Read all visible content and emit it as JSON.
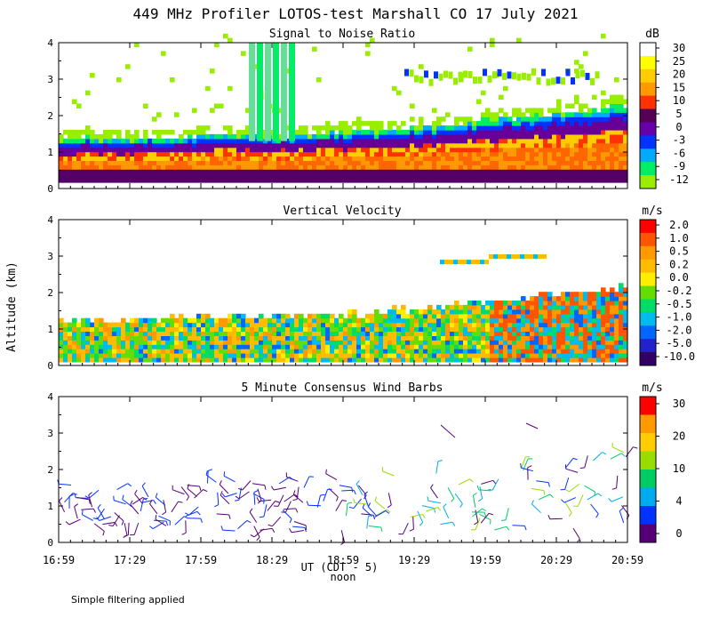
{
  "title": "449 MHz Profiler LOTOS-test Marshall CO 17 July 2021",
  "ylabel": "Altitude (km)",
  "xlabel": "UT (CDT - 5)",
  "x_sublabel": "noon",
  "footer": "Simple filtering applied",
  "x_ticks": [
    "16:59",
    "17:29",
    "17:59",
    "18:29",
    "18:59",
    "19:29",
    "19:59",
    "20:29",
    "20:59"
  ],
  "y_ticks": [
    "0",
    "1",
    "2",
    "3",
    "4"
  ],
  "chart_data": [
    {
      "type": "heatmap",
      "title": "Signal to Noise Ratio",
      "unit": "dB",
      "ylim": [
        0,
        4
      ],
      "colorbar": {
        "labels": [
          "30",
          "25",
          "20",
          "15",
          "10",
          "5",
          "0",
          "-3",
          "-6",
          "-9",
          "-12"
        ],
        "colors": [
          "#ffffff",
          "#ffff00",
          "#ffcc00",
          "#ff9900",
          "#ff3300",
          "#550055",
          "#6600aa",
          "#0033ff",
          "#00aaff",
          "#00ee66",
          "#99ee00"
        ]
      },
      "boundary_layer_top_km": [
        [
          "16:59",
          1.3
        ],
        [
          "17:29",
          1.3
        ],
        [
          "17:59",
          1.4
        ],
        [
          "18:29",
          1.4
        ],
        [
          "18:59",
          1.45
        ],
        [
          "19:29",
          1.6
        ],
        [
          "19:59",
          1.8
        ],
        [
          "20:29",
          2.0
        ],
        [
          "20:59",
          2.2
        ]
      ]
    },
    {
      "type": "heatmap",
      "title": "Vertical Velocity",
      "unit": "m/s",
      "ylim": [
        0,
        4
      ],
      "colorbar": {
        "labels": [
          "2.0",
          "1.0",
          "0.5",
          "0.2",
          "0.0",
          "-0.2",
          "-0.5",
          "-1.0",
          "-2.0",
          "-5.0",
          "-10.0"
        ],
        "colors": [
          "#ff0000",
          "#ff5500",
          "#ff9900",
          "#ffbb00",
          "#ffee00",
          "#66dd00",
          "#00dd66",
          "#00bbee",
          "#0066ff",
          "#2222cc",
          "#330066"
        ]
      }
    },
    {
      "type": "scatter",
      "title": "5 Minute Consensus Wind Barbs",
      "unit": "m/s",
      "ylim": [
        0,
        4
      ],
      "colorbar": {
        "labels": [
          "30",
          "20",
          "10",
          "4",
          "0"
        ],
        "colors": [
          "#ff0000",
          "#ff9900",
          "#ffcc00",
          "#99dd00",
          "#00cc66",
          "#00aaee",
          "#0033ff",
          "#550077"
        ]
      }
    }
  ]
}
